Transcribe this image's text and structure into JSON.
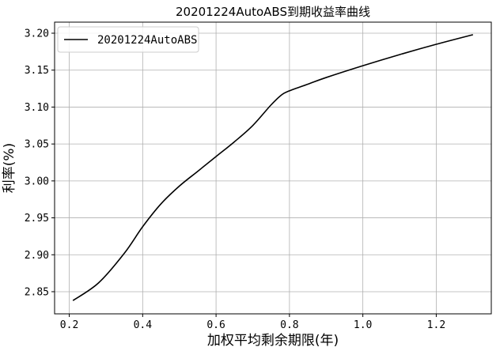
{
  "chart_data": {
    "type": "line",
    "title": "20201224AutoABS到期收益率曲线",
    "xlabel": "加权平均剩余期限(年)",
    "ylabel": "利率(%)",
    "xlim": [
      0.16,
      1.35
    ],
    "ylim": [
      2.82,
      3.215
    ],
    "xticks": [
      0.2,
      0.4,
      0.6,
      0.8,
      1.0,
      1.2
    ],
    "xtick_labels": [
      "0.2",
      "0.4",
      "0.6",
      "0.8",
      "1.0",
      "1.2"
    ],
    "yticks": [
      2.85,
      2.9,
      2.95,
      3.0,
      3.05,
      3.1,
      3.15,
      3.2
    ],
    "ytick_labels": [
      "2.85",
      "2.90",
      "2.95",
      "3.00",
      "3.05",
      "3.10",
      "3.15",
      "3.20"
    ],
    "grid": true,
    "legend_position": "top-left",
    "series": [
      {
        "name": "20201224AutoABS",
        "color": "#000000",
        "x": [
          0.21,
          0.28,
          0.35,
          0.4,
          0.45,
          0.5,
          0.55,
          0.6,
          0.65,
          0.7,
          0.75,
          0.78,
          0.8,
          0.85,
          0.9,
          1.0,
          1.1,
          1.2,
          1.3
        ],
        "y": [
          2.838,
          2.862,
          2.902,
          2.938,
          2.969,
          2.993,
          3.013,
          3.033,
          3.053,
          3.075,
          3.103,
          3.117,
          3.122,
          3.131,
          3.14,
          3.156,
          3.171,
          3.185,
          3.198
        ]
      }
    ]
  }
}
